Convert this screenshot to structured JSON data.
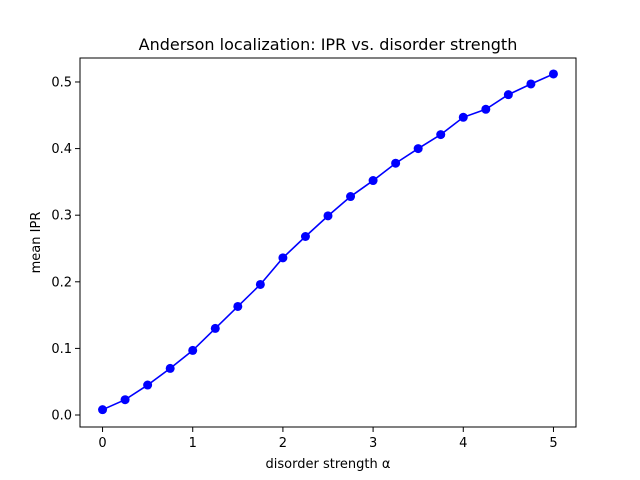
{
  "chart_data": {
    "type": "line",
    "title": "Anderson localization: IPR vs. disorder strength",
    "xlabel": "disorder strength α",
    "ylabel": "mean IPR",
    "xlim": [
      -0.25,
      5.25
    ],
    "ylim": [
      -0.018,
      0.536
    ],
    "xticks": [
      0,
      1,
      2,
      3,
      4,
      5
    ],
    "xtick_labels": [
      "0",
      "1",
      "2",
      "3",
      "4",
      "5"
    ],
    "yticks": [
      0.0,
      0.1,
      0.2,
      0.3,
      0.4,
      0.5
    ],
    "ytick_labels": [
      "0.0",
      "0.1",
      "0.2",
      "0.3",
      "0.4",
      "0.5"
    ],
    "grid": false,
    "series": [
      {
        "color": "#0000ff",
        "marker": "circle",
        "x": [
          0,
          0.25,
          0.5,
          0.75,
          1.0,
          1.25,
          1.5,
          1.75,
          2.0,
          2.25,
          2.5,
          2.75,
          3.0,
          3.25,
          3.5,
          3.75,
          4.0,
          4.25,
          4.5,
          4.75,
          5.0
        ],
        "y": [
          0.008,
          0.023,
          0.045,
          0.07,
          0.097,
          0.13,
          0.163,
          0.196,
          0.236,
          0.268,
          0.299,
          0.328,
          0.352,
          0.378,
          0.4,
          0.421,
          0.447,
          0.459,
          0.481,
          0.497,
          0.512
        ]
      }
    ]
  }
}
